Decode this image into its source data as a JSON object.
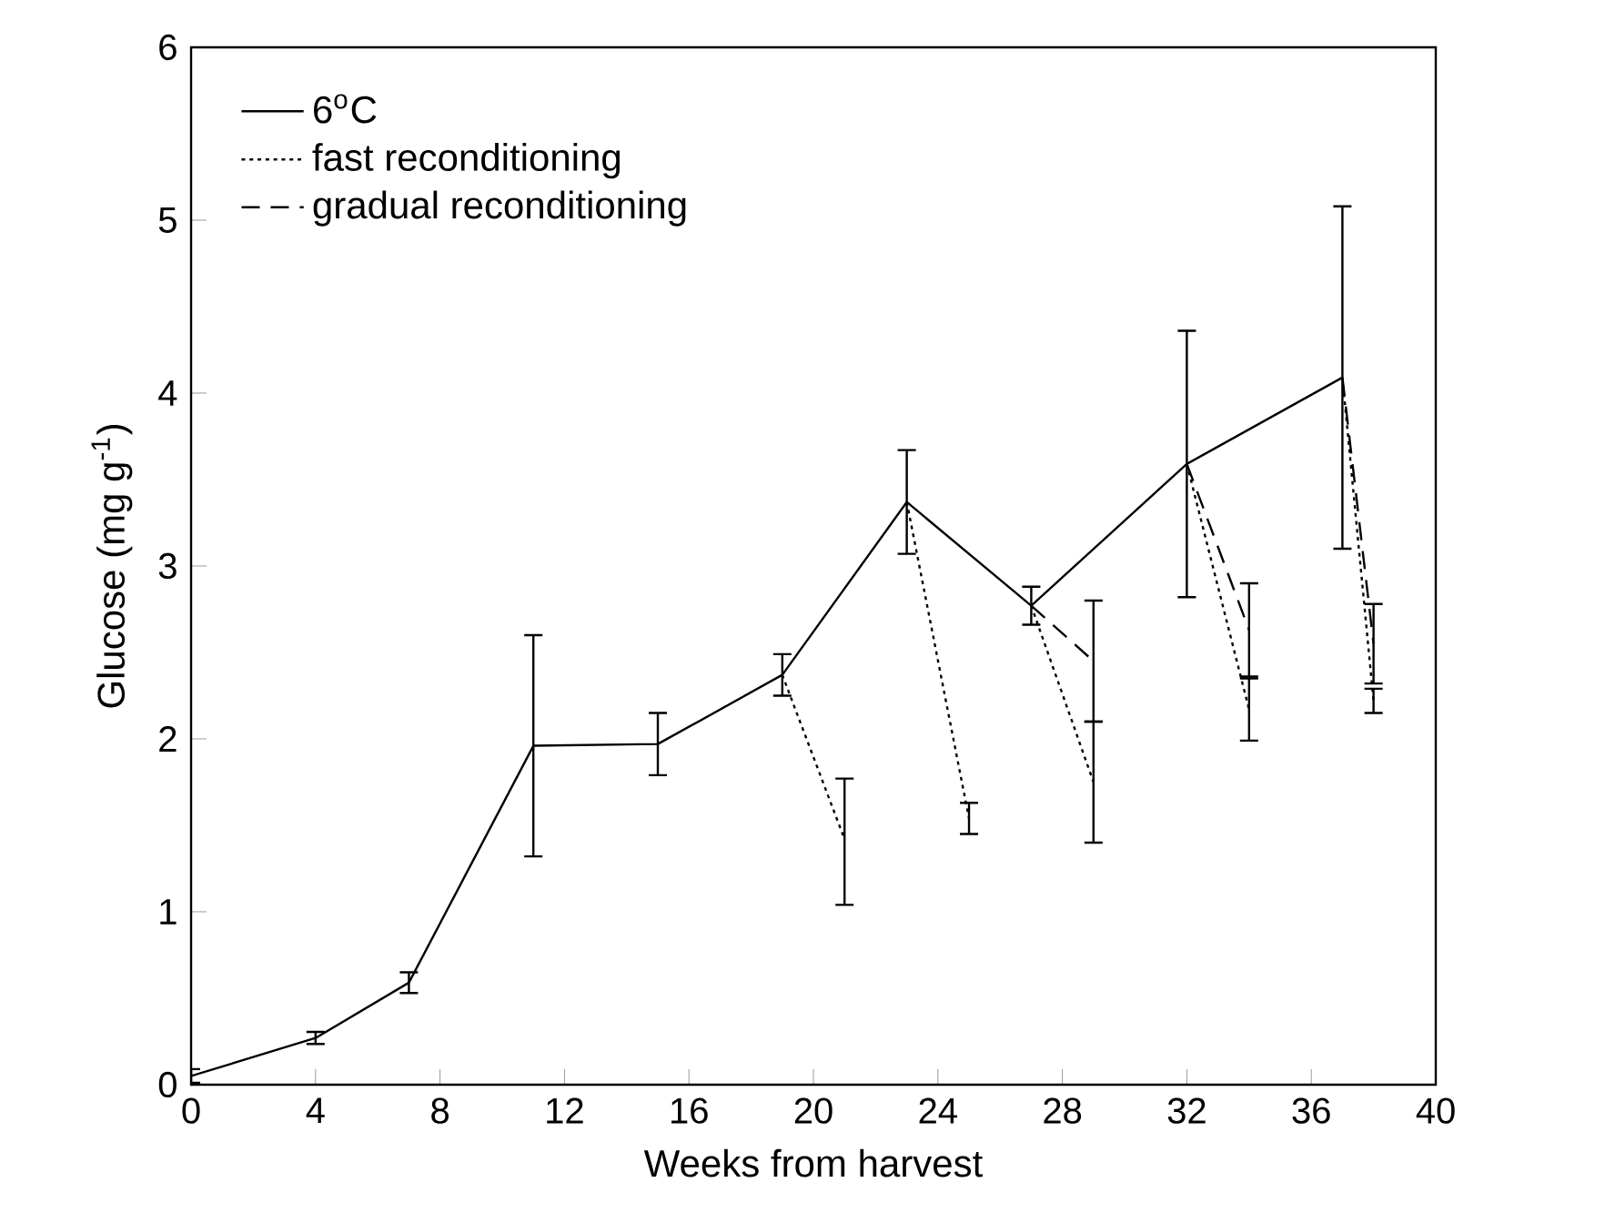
{
  "chart_data": {
    "type": "line",
    "xlabel": "Weeks from harvest",
    "ylabel": "Glucose (mg g$^{-1}$)",
    "xlim": [
      0,
      40
    ],
    "xticks": [
      0,
      4,
      8,
      12,
      16,
      20,
      24,
      28,
      32,
      36,
      40
    ],
    "ylim": [
      0,
      6
    ],
    "yticks": [
      0,
      1,
      2,
      3,
      4,
      5,
      6
    ],
    "legend": "top left",
    "grid": false,
    "series": [
      {
        "name": "6$^{o}$C",
        "color": "#000000",
        "line_style": "solid",
        "x": [
          0,
          4,
          7,
          11,
          15,
          19,
          23,
          27,
          32,
          37
        ],
        "values": [
          0.05,
          0.27,
          0.59,
          1.96,
          1.97,
          2.37,
          3.37,
          2.77,
          3.59,
          4.09
        ],
        "errors": [
          0.04,
          0.035,
          0.06,
          0.64,
          0.18,
          0.12,
          0.3,
          0.11,
          0.77,
          0.99
        ]
      },
      {
        "name": "fast reconditioning",
        "color": "#000000",
        "line_style": "dotted",
        "x": [
          19,
          21
        ],
        "values": [
          2.37,
          1.42
        ],
        "errors": [
          null,
          [
            1.04,
            1.77
          ]
        ]
      },
      {
        "color": "#000000",
        "line_style": "dotted",
        "x": [
          23,
          25
        ],
        "values": [
          3.37,
          1.54
        ],
        "errors": [
          null,
          0.09
        ]
      },
      {
        "color": "#000000",
        "line_style": "dotted",
        "x": [
          27,
          29
        ],
        "values": [
          2.77,
          1.75
        ],
        "errors": [
          null,
          0.35
        ]
      },
      {
        "color": "#000000",
        "line_style": "dotted",
        "x": [
          32,
          34
        ],
        "values": [
          3.59,
          2.17
        ],
        "errors": [
          null,
          0.18
        ]
      },
      {
        "color": "#000000",
        "line_style": "dotted",
        "x": [
          37,
          38
        ],
        "values": [
          4.09,
          2.22
        ],
        "errors": [
          null,
          0.07
        ]
      },
      {
        "name": "gradual reconditioning",
        "color": "#000000",
        "line_style": "dashed",
        "x": [
          27,
          29
        ],
        "values": [
          2.77,
          2.45
        ],
        "errors": [
          null,
          0.35
        ]
      },
      {
        "color": "#000000",
        "line_style": "dashed",
        "x": [
          32,
          34
        ],
        "values": [
          3.59,
          2.63
        ],
        "errors": [
          null,
          0.27
        ]
      },
      {
        "color": "#000000",
        "line_style": "dashed",
        "x": [
          37,
          38
        ],
        "values": [
          4.09,
          2.55
        ],
        "errors": [
          null,
          0.23
        ]
      }
    ]
  }
}
